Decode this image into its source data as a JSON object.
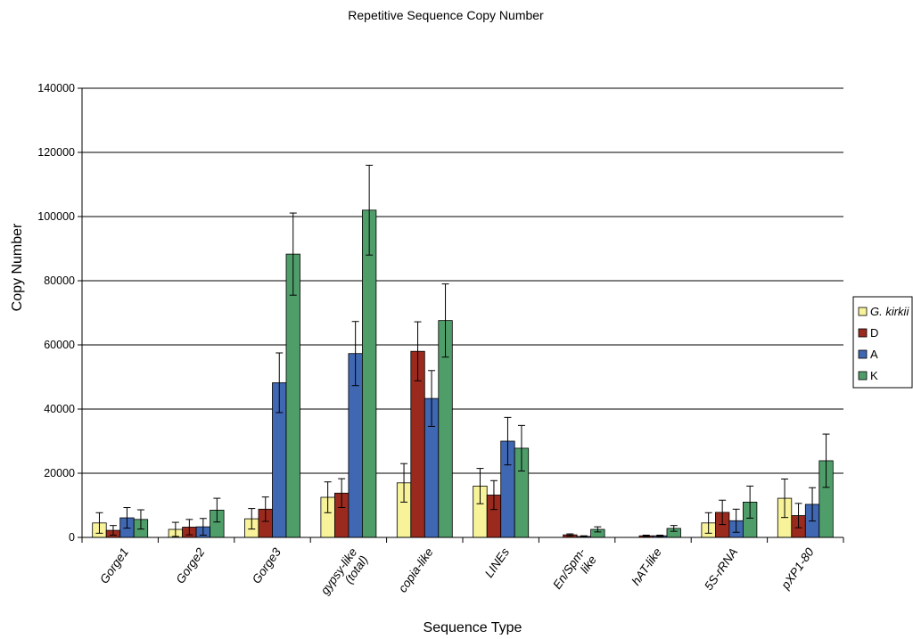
{
  "chart_data": {
    "type": "bar",
    "title": "Repetitive Sequence Copy Number",
    "xlabel": "Sequence Type",
    "ylabel": "Copy Number",
    "ylim": [
      0,
      140000
    ],
    "yticks": [
      0,
      20000,
      40000,
      60000,
      80000,
      100000,
      120000,
      140000
    ],
    "grid": true,
    "legend_position": "right",
    "categories": [
      [
        "Gorge1"
      ],
      [
        "Gorge2"
      ],
      [
        "Gorge3"
      ],
      [
        "gypsy-like",
        "(total)"
      ],
      [
        "copia-like"
      ],
      [
        "LINEs"
      ],
      [
        "En/Spm-",
        "like"
      ],
      [
        "hAT-like"
      ],
      [
        "5S-rRNA"
      ],
      [
        "pXP1-80"
      ]
    ],
    "series": [
      {
        "name": "G. kirkii",
        "name_italic": true,
        "color": "#f8f39a",
        "values": [
          4500,
          2500,
          5800,
          12500,
          17000,
          16000,
          0,
          0,
          4500,
          12200
        ],
        "errors": [
          3200,
          2200,
          3200,
          4800,
          6000,
          5500,
          0,
          0,
          3200,
          6000
        ]
      },
      {
        "name": "D",
        "name_italic": false,
        "color": "#9b2a1e",
        "values": [
          2200,
          3200,
          8800,
          13800,
          58000,
          13200,
          800,
          500,
          7800,
          6800
        ],
        "errors": [
          1500,
          2400,
          3800,
          4500,
          9200,
          4500,
          300,
          200,
          3800,
          3800
        ]
      },
      {
        "name": "A",
        "name_italic": false,
        "color": "#3f67b2",
        "values": [
          6100,
          3300,
          48200,
          57300,
          43300,
          30000,
          300,
          500,
          5200,
          10300
        ],
        "errors": [
          3200,
          2600,
          9300,
          10000,
          8700,
          7400,
          200,
          200,
          3600,
          5200
        ]
      },
      {
        "name": "K",
        "name_italic": false,
        "color": "#4f9e6a",
        "values": [
          5600,
          8500,
          88300,
          102000,
          67600,
          27800,
          2500,
          2800,
          11000,
          23900
        ],
        "errors": [
          3000,
          3700,
          12800,
          14000,
          11400,
          7100,
          800,
          900,
          5000,
          8300
        ]
      }
    ]
  }
}
